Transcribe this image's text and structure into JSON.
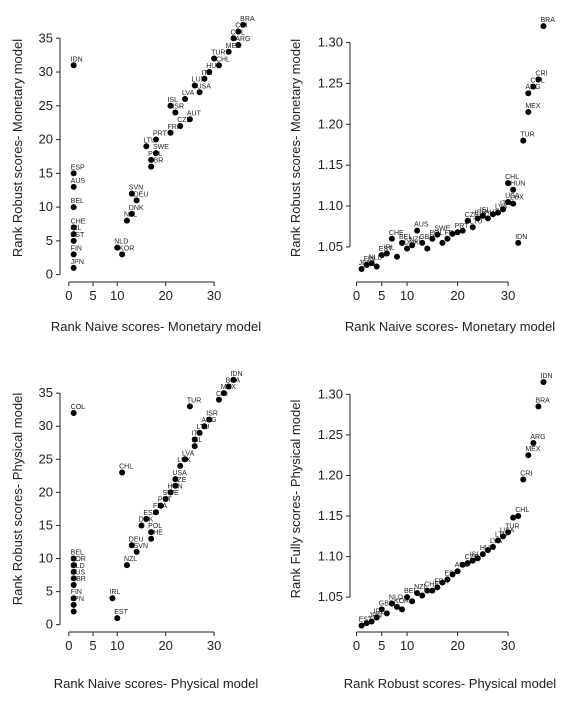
{
  "chart_data": [
    {
      "type": "scatter",
      "xlabel": "Rank Naive scores- Monetary model",
      "ylabel": "Rank Robust scores- Monetary model",
      "xlim": [
        -1,
        37
      ],
      "ylim": [
        -0.5,
        38
      ],
      "xticks": [
        0,
        5,
        10,
        20,
        30
      ],
      "yticks": [
        0,
        5,
        10,
        15,
        20,
        25,
        30,
        35
      ],
      "points": [
        {
          "label": "IDN",
          "x": 1,
          "y": 31
        },
        {
          "label": "ESP",
          "x": 1,
          "y": 15
        },
        {
          "label": "AUS",
          "x": 1,
          "y": 13
        },
        {
          "label": "BEL",
          "x": 1,
          "y": 10
        },
        {
          "label": "CHE",
          "x": 1,
          "y": 7
        },
        {
          "label": "IRL",
          "x": 1,
          "y": 6
        },
        {
          "label": "EST",
          "x": 1,
          "y": 5
        },
        {
          "label": "FIN",
          "x": 1,
          "y": 3
        },
        {
          "label": "JPN",
          "x": 1,
          "y": 1
        },
        {
          "label": "NLD",
          "x": 10,
          "y": 4
        },
        {
          "label": "KOR",
          "x": 11,
          "y": 3
        },
        {
          "label": "NZL",
          "x": 12,
          "y": 8
        },
        {
          "label": "DNK",
          "x": 13,
          "y": 9
        },
        {
          "label": "SVN",
          "x": 13,
          "y": 12
        },
        {
          "label": "DEU",
          "x": 14,
          "y": 11
        },
        {
          "label": "GBR",
          "x": 17,
          "y": 16
        },
        {
          "label": "POL",
          "x": 17,
          "y": 17
        },
        {
          "label": "SWE",
          "x": 18,
          "y": 18
        },
        {
          "label": "LTU",
          "x": 16,
          "y": 19
        },
        {
          "label": "PRT",
          "x": 18,
          "y": 20
        },
        {
          "label": "FRA",
          "x": 21,
          "y": 21
        },
        {
          "label": "CZE",
          "x": 23,
          "y": 22
        },
        {
          "label": "AUT",
          "x": 25,
          "y": 23
        },
        {
          "label": "ISR",
          "x": 22,
          "y": 24
        },
        {
          "label": "ISL",
          "x": 21,
          "y": 25
        },
        {
          "label": "LVA",
          "x": 24,
          "y": 26
        },
        {
          "label": "USA",
          "x": 27,
          "y": 27
        },
        {
          "label": "LUX",
          "x": 26,
          "y": 28
        },
        {
          "label": "ITA",
          "x": 28,
          "y": 29
        },
        {
          "label": "HUN",
          "x": 29,
          "y": 30
        },
        {
          "label": "CHL",
          "x": 31,
          "y": 31
        },
        {
          "label": "TUR",
          "x": 30,
          "y": 32
        },
        {
          "label": "MEX",
          "x": 33,
          "y": 33
        },
        {
          "label": "ARG",
          "x": 35,
          "y": 34
        },
        {
          "label": "COL",
          "x": 34,
          "y": 35
        },
        {
          "label": "CRI",
          "x": 35,
          "y": 36
        },
        {
          "label": "BRA",
          "x": 36,
          "y": 37
        }
      ]
    },
    {
      "type": "scatter",
      "xlabel": "Rank Naive scores- Monetary model",
      "ylabel": "Rank Robust scores- Monetary model",
      "xlim": [
        -0.5,
        37.5
      ],
      "ylim": [
        1.012,
        1.33
      ],
      "xticks": [
        0,
        5,
        10,
        20,
        30
      ],
      "yticks": [
        "1.05",
        "1.10",
        "1.15",
        "1.20",
        "1.25",
        "1.30"
      ],
      "points": [
        {
          "label": "JPN",
          "x": 1,
          "y": 1.023
        },
        {
          "label": "FIN",
          "x": 2,
          "y": 1.028
        },
        {
          "label": "NLD",
          "x": 3,
          "y": 1.03
        },
        {
          "label": "",
          "x": 4,
          "y": 1.026
        },
        {
          "label": "EST",
          "x": 5,
          "y": 1.04
        },
        {
          "label": "IRL",
          "x": 6,
          "y": 1.042
        },
        {
          "label": "CHE",
          "x": 7,
          "y": 1.06
        },
        {
          "label": "",
          "x": 8,
          "y": 1.038
        },
        {
          "label": "BEL",
          "x": 9,
          "y": 1.055
        },
        {
          "label": "DNK",
          "x": 10,
          "y": 1.048
        },
        {
          "label": "NZL",
          "x": 11,
          "y": 1.052
        },
        {
          "label": "AUS",
          "x": 12,
          "y": 1.07
        },
        {
          "label": "GBR",
          "x": 13,
          "y": 1.055
        },
        {
          "label": "",
          "x": 14,
          "y": 1.048
        },
        {
          "label": "POL",
          "x": 15,
          "y": 1.06
        },
        {
          "label": "SWE",
          "x": 16,
          "y": 1.065
        },
        {
          "label": "",
          "x": 17,
          "y": 1.055
        },
        {
          "label": "FRA",
          "x": 18,
          "y": 1.06
        },
        {
          "label": "",
          "x": 19,
          "y": 1.066
        },
        {
          "label": "PRT",
          "x": 20,
          "y": 1.068
        },
        {
          "label": "",
          "x": 21,
          "y": 1.07
        },
        {
          "label": "CZE",
          "x": 22,
          "y": 1.082
        },
        {
          "label": "LTU",
          "x": 23,
          "y": 1.074
        },
        {
          "label": "ISR",
          "x": 24,
          "y": 1.085
        },
        {
          "label": "ISL",
          "x": 25,
          "y": 1.088
        },
        {
          "label": "AUT",
          "x": 26,
          "y": 1.085
        },
        {
          "label": "",
          "x": 27,
          "y": 1.09
        },
        {
          "label": "LVA",
          "x": 28,
          "y": 1.092
        },
        {
          "label": "ITA",
          "x": 29,
          "y": 1.096
        },
        {
          "label": "USA",
          "x": 30,
          "y": 1.105
        },
        {
          "label": "LUX",
          "x": 31,
          "y": 1.103
        },
        {
          "label": "HUN",
          "x": 31,
          "y": 1.12
        },
        {
          "label": "CHL",
          "x": 30,
          "y": 1.128
        },
        {
          "label": "IDN",
          "x": 32,
          "y": 1.055
        },
        {
          "label": "TUR",
          "x": 33,
          "y": 1.18
        },
        {
          "label": "MEX",
          "x": 34,
          "y": 1.215
        },
        {
          "label": "ARG",
          "x": 34,
          "y": 1.238
        },
        {
          "label": "COL",
          "x": 35,
          "y": 1.246
        },
        {
          "label": "CRI",
          "x": 36,
          "y": 1.255
        },
        {
          "label": "BRA",
          "x": 37,
          "y": 1.32
        }
      ]
    },
    {
      "type": "scatter",
      "xlabel": "Rank Naive scores- Physical model",
      "ylabel": "Rank Robust scores- Physical model",
      "xlim": [
        -1,
        37
      ],
      "ylim": [
        -0.5,
        38.5
      ],
      "xticks": [
        0,
        5,
        10,
        20,
        30
      ],
      "yticks": [
        0,
        5,
        10,
        15,
        20,
        25,
        30,
        35
      ],
      "points": [
        {
          "label": "COL",
          "x": 1,
          "y": 32
        },
        {
          "label": "BEL",
          "x": 1,
          "y": 10
        },
        {
          "label": "KOR",
          "x": 1,
          "y": 9
        },
        {
          "label": "NLD",
          "x": 1,
          "y": 8
        },
        {
          "label": "AUS",
          "x": 1,
          "y": 7
        },
        {
          "label": "GBR",
          "x": 1,
          "y": 6
        },
        {
          "label": "FIN",
          "x": 1,
          "y": 4
        },
        {
          "label": "JPN",
          "x": 1,
          "y": 3
        },
        {
          "label": "",
          "x": 1,
          "y": 2
        },
        {
          "label": "IRL",
          "x": 9,
          "y": 4
        },
        {
          "label": "EST",
          "x": 10,
          "y": 1
        },
        {
          "label": "CHL",
          "x": 11,
          "y": 23
        },
        {
          "label": "NZL",
          "x": 12,
          "y": 9
        },
        {
          "label": "DEU",
          "x": 13,
          "y": 12
        },
        {
          "label": "SVN",
          "x": 14,
          "y": 11
        },
        {
          "label": "DNK",
          "x": 15,
          "y": 15
        },
        {
          "label": "ESP",
          "x": 16,
          "y": 16
        },
        {
          "label": "CHE",
          "x": 17,
          "y": 13
        },
        {
          "label": "POL",
          "x": 17,
          "y": 14
        },
        {
          "label": "FRA",
          "x": 18,
          "y": 17
        },
        {
          "label": "PRT",
          "x": 19,
          "y": 18
        },
        {
          "label": "SWE",
          "x": 20,
          "y": 19
        },
        {
          "label": "HUN",
          "x": 21,
          "y": 20
        },
        {
          "label": "CZE",
          "x": 22,
          "y": 21
        },
        {
          "label": "USA",
          "x": 22,
          "y": 22
        },
        {
          "label": "LUX",
          "x": 23,
          "y": 24
        },
        {
          "label": "LVA",
          "x": 24,
          "y": 25
        },
        {
          "label": "TUR",
          "x": 25,
          "y": 33
        },
        {
          "label": "ISL",
          "x": 26,
          "y": 27
        },
        {
          "label": "ITA",
          "x": 26,
          "y": 28
        },
        {
          "label": "LTU",
          "x": 27,
          "y": 29
        },
        {
          "label": "ARG",
          "x": 28,
          "y": 30
        },
        {
          "label": "ISR",
          "x": 29,
          "y": 31
        },
        {
          "label": "CRI",
          "x": 31,
          "y": 34
        },
        {
          "label": "MEX",
          "x": 32,
          "y": 35
        },
        {
          "label": "BRA",
          "x": 33,
          "y": 36
        },
        {
          "label": "IDN",
          "x": 34,
          "y": 37
        }
      ]
    },
    {
      "type": "scatter",
      "xlabel": "Rank Robust scores- Physical model",
      "ylabel": "Rank Fully scores- Physical model",
      "xlim": [
        -0.5,
        37.5
      ],
      "ylim": [
        1.012,
        1.33
      ],
      "xticks": [
        0,
        5,
        10,
        20,
        30
      ],
      "yticks": [
        "1.05",
        "1.10",
        "1.15",
        "1.20",
        "1.25",
        "1.30"
      ],
      "points": [
        {
          "label": "EST",
          "x": 1,
          "y": 1.015
        },
        {
          "label": "",
          "x": 2,
          "y": 1.018
        },
        {
          "label": "JPN",
          "x": 3,
          "y": 1.02
        },
        {
          "label": "IRL",
          "x": 4,
          "y": 1.025
        },
        {
          "label": "GBR",
          "x": 5,
          "y": 1.035
        },
        {
          "label": "",
          "x": 6,
          "y": 1.03
        },
        {
          "label": "NLD",
          "x": 7,
          "y": 1.042
        },
        {
          "label": "KOR",
          "x": 8,
          "y": 1.038
        },
        {
          "label": "",
          "x": 9,
          "y": 1.035
        },
        {
          "label": "BEL",
          "x": 10,
          "y": 1.05
        },
        {
          "label": "",
          "x": 11,
          "y": 1.045
        },
        {
          "label": "NZL",
          "x": 12,
          "y": 1.055
        },
        {
          "label": "",
          "x": 13,
          "y": 1.052
        },
        {
          "label": "CHE",
          "x": 14,
          "y": 1.058
        },
        {
          "label": "",
          "x": 15,
          "y": 1.058
        },
        {
          "label": "FRA",
          "x": 16,
          "y": 1.062
        },
        {
          "label": "",
          "x": 17,
          "y": 1.068
        },
        {
          "label": "ESP",
          "x": 18,
          "y": 1.072
        },
        {
          "label": "",
          "x": 19,
          "y": 1.078
        },
        {
          "label": "AUS",
          "x": 20,
          "y": 1.082
        },
        {
          "label": "",
          "x": 21,
          "y": 1.09
        },
        {
          "label": "CZE",
          "x": 22,
          "y": 1.092
        },
        {
          "label": "ISL",
          "x": 23,
          "y": 1.095
        },
        {
          "label": "",
          "x": 24,
          "y": 1.098
        },
        {
          "label": "HUN",
          "x": 25,
          "y": 1.103
        },
        {
          "label": "",
          "x": 26,
          "y": 1.108
        },
        {
          "label": "LVA",
          "x": 27,
          "y": 1.112
        },
        {
          "label": "LTU",
          "x": 28,
          "y": 1.12
        },
        {
          "label": "USA",
          "x": 29,
          "y": 1.125
        },
        {
          "label": "TUR",
          "x": 30,
          "y": 1.13
        },
        {
          "label": "",
          "x": 31,
          "y": 1.148
        },
        {
          "label": "CHL",
          "x": 32,
          "y": 1.15
        },
        {
          "label": "CRI",
          "x": 33,
          "y": 1.195
        },
        {
          "label": "MEX",
          "x": 34,
          "y": 1.225
        },
        {
          "label": "ARG",
          "x": 35,
          "y": 1.24
        },
        {
          "label": "BRA",
          "x": 36,
          "y": 1.285
        },
        {
          "label": "IDN",
          "x": 37,
          "y": 1.315
        }
      ]
    }
  ]
}
